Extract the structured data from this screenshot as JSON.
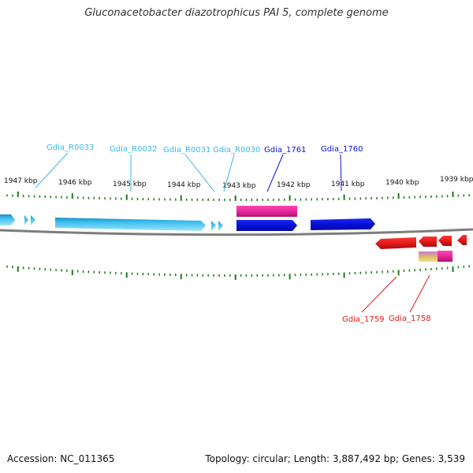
{
  "title": "Gluconacetobacter diazotrophicus PAI 5, complete genome",
  "footer": {
    "accession": "Accession: NC_011365",
    "summary": "Topology: circular; Length: 3,887,492 bp; Genes: 3,539"
  },
  "colors": {
    "rna_gene": "#39b8e8",
    "cds_forward": "#0a14d8",
    "cds_reverse": "#e21b1b",
    "pseudo_pink": "#e8299a",
    "tick": "#1c7a1c",
    "backbone": "#7d7d7d"
  },
  "kbp_scale": [
    {
      "label": "1947 kbp"
    },
    {
      "label": "1946 kbp"
    },
    {
      "label": "1945 kbp"
    },
    {
      "label": "1944 kbp"
    },
    {
      "label": "1943 kbp"
    },
    {
      "label": "1942 kbp"
    },
    {
      "label": "1941 kbp"
    },
    {
      "label": "1940 kbp"
    },
    {
      "label": "1939 kbp"
    }
  ],
  "gene_labels": {
    "gdia_r0033": "Gdia_R0033",
    "gdia_r0032": "Gdia_R0032",
    "gdia_r0031": "Gdia_R0031",
    "gdia_r0030": "Gdia_R0030",
    "gdia_1761": "Gdia_1761",
    "gdia_1760": "Gdia_1760",
    "gdia_1759": "Gdia_1759",
    "gdia_1758": "Gdia_1758"
  }
}
